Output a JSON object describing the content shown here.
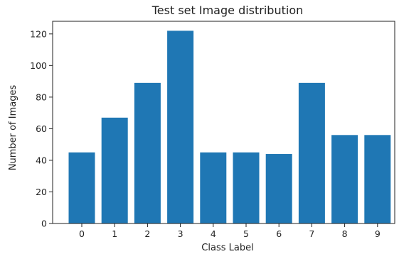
{
  "chart_data": {
    "type": "bar",
    "title": "Test set Image distribution",
    "xlabel": "Class Label",
    "ylabel": "Number of Images",
    "categories": [
      "0",
      "1",
      "2",
      "3",
      "4",
      "5",
      "6",
      "7",
      "8",
      "9"
    ],
    "values": [
      45,
      67,
      89,
      122,
      45,
      45,
      44,
      89,
      56,
      56
    ],
    "ylim": [
      0,
      128
    ],
    "yticks": [
      0,
      20,
      40,
      60,
      80,
      100,
      120
    ],
    "grid": false,
    "legend": "none",
    "bar_color": "#1f77b4"
  }
}
